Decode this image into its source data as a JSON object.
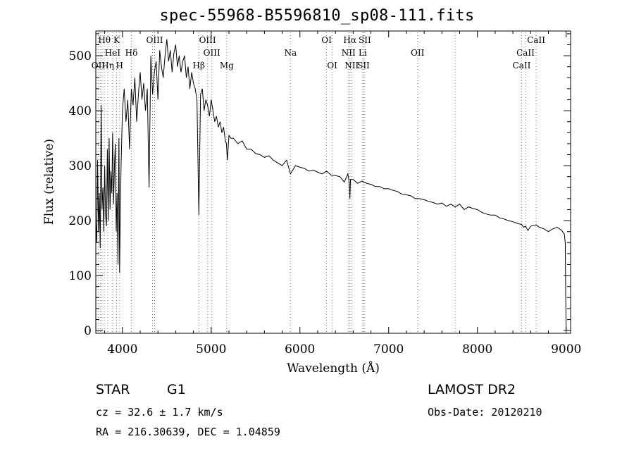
{
  "chart_data": {
    "type": "line",
    "title": "spec-55968-B5596810_sp08-111.fits",
    "xlabel": "Wavelength (Å)",
    "ylabel": "Flux (relative)",
    "xlim": [
      3700,
      9050
    ],
    "ylim": [
      -5,
      545
    ],
    "x_ticks": [
      4000,
      5000,
      6000,
      7000,
      8000,
      9000
    ],
    "y_ticks": [
      0,
      100,
      200,
      300,
      400,
      500
    ],
    "grid": false,
    "series": [
      {
        "x": [
          3700,
          3710,
          3720,
          3730,
          3740,
          3750,
          3760,
          3770,
          3780,
          3790,
          3800,
          3810,
          3820,
          3830,
          3840,
          3850,
          3860,
          3870,
          3880,
          3890,
          3900,
          3910,
          3920,
          3930,
          3940,
          3950,
          3960,
          3968,
          3975,
          3985,
          4000,
          4020,
          4040,
          4060,
          4080,
          4101,
          4120,
          4140,
          4160,
          4180,
          4200,
          4220,
          4240,
          4260,
          4280,
          4300,
          4320,
          4340,
          4360,
          4380,
          4400,
          4420,
          4440,
          4460,
          4480,
          4500,
          4520,
          4540,
          4560,
          4580,
          4600,
          4620,
          4640,
          4660,
          4680,
          4700,
          4720,
          4740,
          4760,
          4780,
          4800,
          4820,
          4840,
          4861,
          4880,
          4900,
          4920,
          4940,
          4960,
          4980,
          5000,
          5020,
          5040,
          5060,
          5080,
          5100,
          5120,
          5140,
          5160,
          5172,
          5183,
          5200,
          5220,
          5250,
          5300,
          5350,
          5400,
          5450,
          5500,
          5550,
          5600,
          5650,
          5700,
          5750,
          5800,
          5850,
          5893,
          5950,
          6000,
          6050,
          6100,
          6150,
          6200,
          6250,
          6300,
          6350,
          6400,
          6450,
          6500,
          6540,
          6555,
          6563,
          6570,
          6600,
          6650,
          6700,
          6750,
          6800,
          6850,
          6900,
          6950,
          7000,
          7050,
          7100,
          7150,
          7200,
          7250,
          7300,
          7350,
          7400,
          7450,
          7500,
          7550,
          7600,
          7650,
          7700,
          7750,
          7800,
          7850,
          7900,
          7950,
          8000,
          8050,
          8100,
          8150,
          8200,
          8250,
          8300,
          8350,
          8400,
          8450,
          8498,
          8520,
          8542,
          8570,
          8600,
          8662,
          8700,
          8750,
          8800,
          8850,
          8900,
          8950,
          8980,
          8990,
          8995,
          9000
        ],
        "y": [
          200,
          160,
          310,
          180,
          250,
          150,
          410,
          220,
          260,
          180,
          300,
          210,
          190,
          330,
          200,
          350,
          220,
          290,
          250,
          360,
          230,
          300,
          340,
          180,
          250,
          120,
          350,
          105,
          200,
          300,
          400,
          440,
          380,
          420,
          330,
          440,
          410,
          460,
          380,
          430,
          470,
          420,
          450,
          400,
          440,
          260,
          500,
          430,
          470,
          490,
          420,
          510,
          480,
          460,
          500,
          530,
          490,
          510,
          470,
          505,
          520,
          480,
          500,
          470,
          490,
          500,
          460,
          480,
          440,
          470,
          450,
          440,
          420,
          210,
          430,
          440,
          400,
          420,
          410,
          390,
          420,
          400,
          380,
          390,
          370,
          380,
          360,
          370,
          345,
          340,
          310,
          355,
          350,
          350,
          340,
          345,
          330,
          330,
          322,
          320,
          315,
          318,
          310,
          305,
          300,
          310,
          285,
          300,
          297,
          295,
          290,
          292,
          288,
          285,
          290,
          283,
          282,
          280,
          270,
          285,
          270,
          240,
          275,
          275,
          268,
          272,
          268,
          266,
          262,
          262,
          258,
          258,
          255,
          253,
          248,
          247,
          245,
          240,
          240,
          238,
          235,
          233,
          230,
          232,
          226,
          230,
          225,
          230,
          220,
          225,
          222,
          220,
          215,
          212,
          210,
          210,
          205,
          203,
          200,
          198,
          195,
          193,
          188,
          190,
          182,
          190,
          192,
          188,
          185,
          180,
          185,
          188,
          182,
          175,
          160,
          60,
          0
        ]
      }
    ],
    "line_markers": [
      {
        "label": "Hθ",
        "x": 3797,
        "row": 0
      },
      {
        "label": "K",
        "x": 3934,
        "row": 0
      },
      {
        "label": "OIII",
        "x": 4363,
        "row": 0
      },
      {
        "label": "OIII",
        "x": 4959,
        "row": 0
      },
      {
        "label": "OI",
        "x": 6300,
        "row": 0
      },
      {
        "label": "Hα",
        "x": 6563,
        "row": 0
      },
      {
        "label": "SII",
        "x": 6731,
        "row": 0
      },
      {
        "label": "CaII",
        "x": 8662,
        "row": 0
      },
      {
        "label": "HeI",
        "x": 3889,
        "row": 1
      },
      {
        "label": "Hδ",
        "x": 4101,
        "row": 1
      },
      {
        "label": "OIII",
        "x": 5007,
        "row": 1
      },
      {
        "label": "Na",
        "x": 5893,
        "row": 1
      },
      {
        "label": "NII",
        "x": 6548,
        "row": 1
      },
      {
        "label": "Li",
        "x": 6708,
        "row": 1
      },
      {
        "label": "OII",
        "x": 7325,
        "row": 1
      },
      {
        "label": "CaII",
        "x": 8542,
        "row": 1
      },
      {
        "label": "OII",
        "x": 3727,
        "row": 2
      },
      {
        "label": "Hη",
        "x": 3835,
        "row": 2
      },
      {
        "label": "H",
        "x": 3968,
        "row": 2
      },
      {
        "label": "Hβ",
        "x": 4861,
        "row": 2
      },
      {
        "label": "Mg",
        "x": 5175,
        "row": 2
      },
      {
        "label": "OI",
        "x": 6364,
        "row": 2
      },
      {
        "label": "NII",
        "x": 6583,
        "row": 2
      },
      {
        "label": "SII",
        "x": 6716,
        "row": 2
      },
      {
        "label": "CaII",
        "x": 8498,
        "row": 2
      }
    ],
    "extra_marker_lines": [
      3750,
      3770,
      3889,
      4101,
      4340,
      4861,
      4959,
      5007,
      5175,
      5893,
      6300,
      6364,
      6548,
      6563,
      6583,
      6716,
      6731,
      7325,
      7750,
      8498,
      8542,
      8662
    ]
  },
  "info": {
    "class": "STAR",
    "subclass": "G1",
    "survey": "LAMOST DR2",
    "cz": "cz = 32.6 ± 1.7 km/s",
    "obs_date": "Obs-Date: 20120210",
    "coords": "RA = 216.30639, DEC =   1.04859"
  }
}
